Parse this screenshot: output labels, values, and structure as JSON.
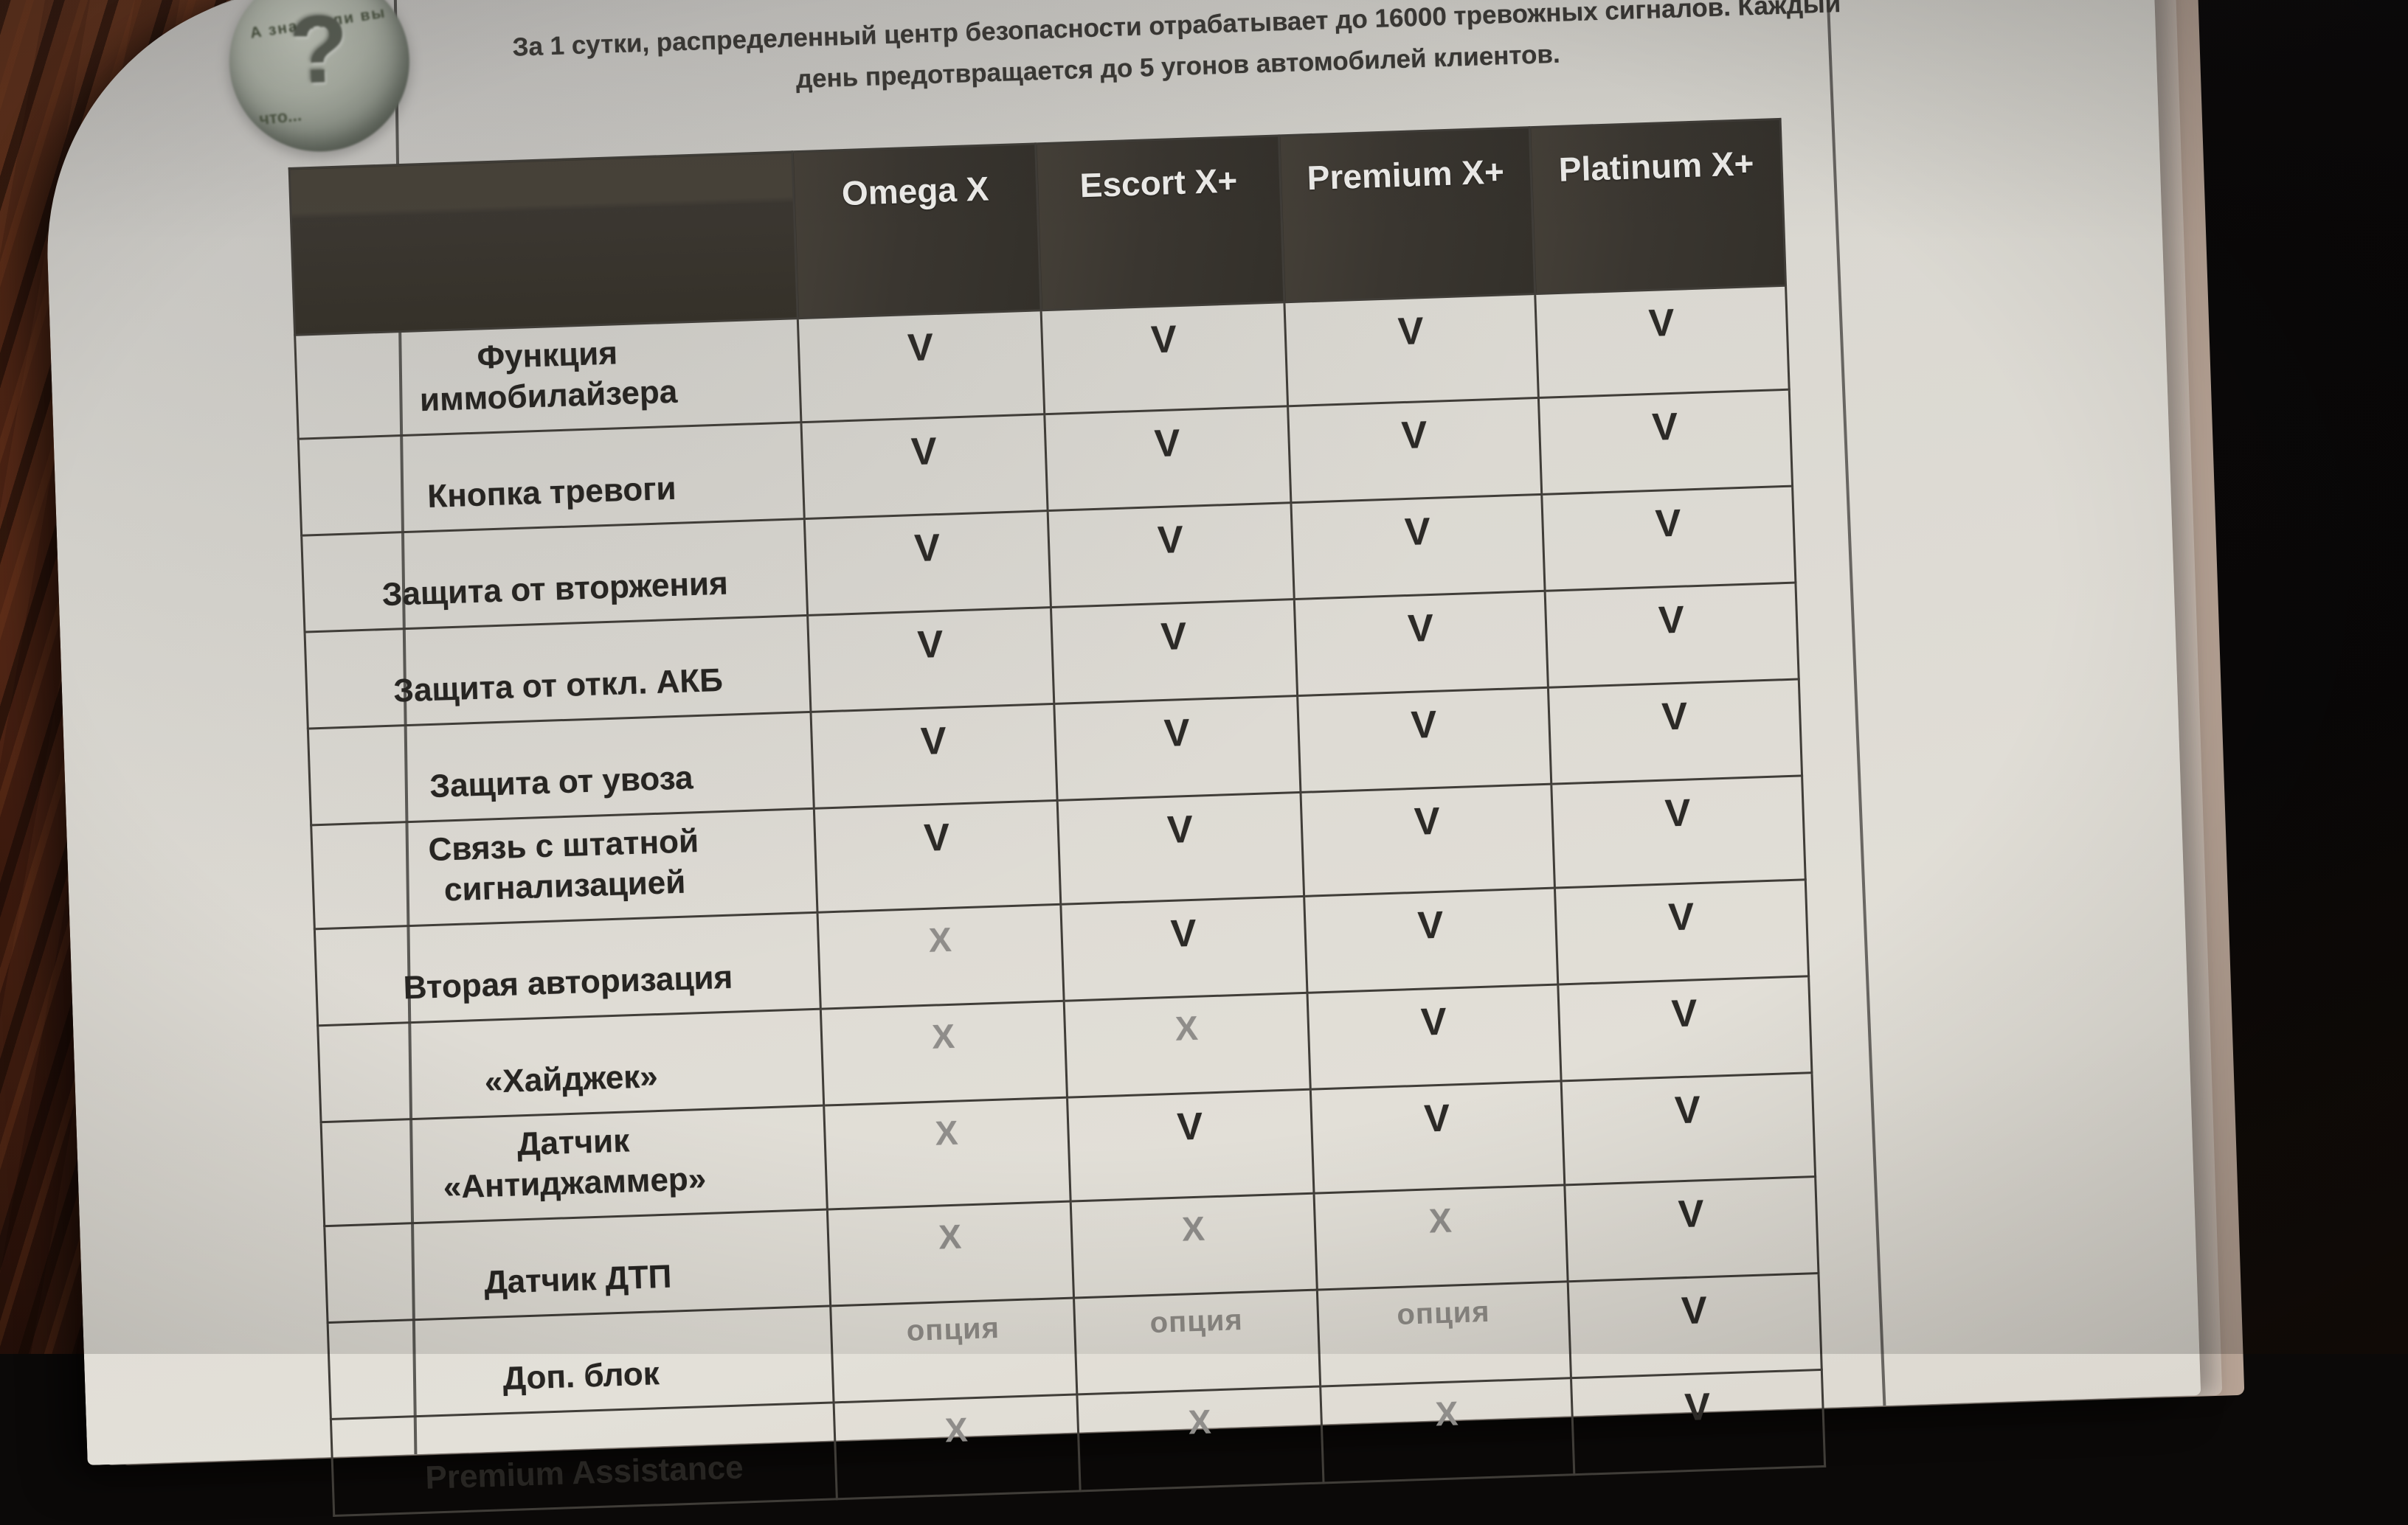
{
  "badge": {
    "caption_top": "А знаете ли вы",
    "question_mark": "?",
    "caption_bottom": "что..."
  },
  "intro": {
    "line1": "За 1 сутки, распределенный центр безопасности отрабатывает до 16000 тревожных сигналов. Каждый",
    "line2": "день предотвращается до 5 угонов автомобилей клиентов."
  },
  "table": {
    "columns": [
      "Omega X",
      "Escort X+",
      "Premium X+",
      "Platinum X+"
    ],
    "rows": [
      {
        "label": "Функция\nиммобилайзера",
        "values": [
          "V",
          "V",
          "V",
          "V"
        ]
      },
      {
        "label": "Кнопка тревоги",
        "values": [
          "V",
          "V",
          "V",
          "V"
        ]
      },
      {
        "label": "Защита от вторжения",
        "values": [
          "V",
          "V",
          "V",
          "V"
        ]
      },
      {
        "label": "Защита от откл. АКБ",
        "values": [
          "V",
          "V",
          "V",
          "V"
        ]
      },
      {
        "label": "Защита от увоза",
        "values": [
          "V",
          "V",
          "V",
          "V"
        ]
      },
      {
        "label": "Связь с штатной\nсигнализацией",
        "values": [
          "V",
          "V",
          "V",
          "V"
        ]
      },
      {
        "label": "Вторая авторизация",
        "values": [
          "X",
          "V",
          "V",
          "V"
        ]
      },
      {
        "label": "«Хайджек»",
        "values": [
          "X",
          "X",
          "V",
          "V"
        ]
      },
      {
        "label": "Датчик\n«Антиджаммер»",
        "values": [
          "X",
          "V",
          "V",
          "V"
        ]
      },
      {
        "label": "Датчик ДТП",
        "values": [
          "X",
          "X",
          "X",
          "V"
        ]
      },
      {
        "label": "Доп. блок",
        "values": [
          "опция",
          "опция",
          "опция",
          "V"
        ]
      },
      {
        "label": "Premium Assistance",
        "values": [
          "X",
          "X",
          "X",
          "V"
        ]
      }
    ],
    "value_legend": {
      "included": "V",
      "not_available": "X",
      "optional": "опция"
    }
  },
  "colors": {
    "header_bg": "#3a3631",
    "header_text": "#eeedea",
    "paper": "#dcd9d2",
    "table_border": "#403d38",
    "check_mark": "#2c2a27",
    "cross_mark": "#8f8d8a",
    "option_text": "#8e8b86",
    "wood_table": "#54281a",
    "backdrop": "#0b0908"
  }
}
